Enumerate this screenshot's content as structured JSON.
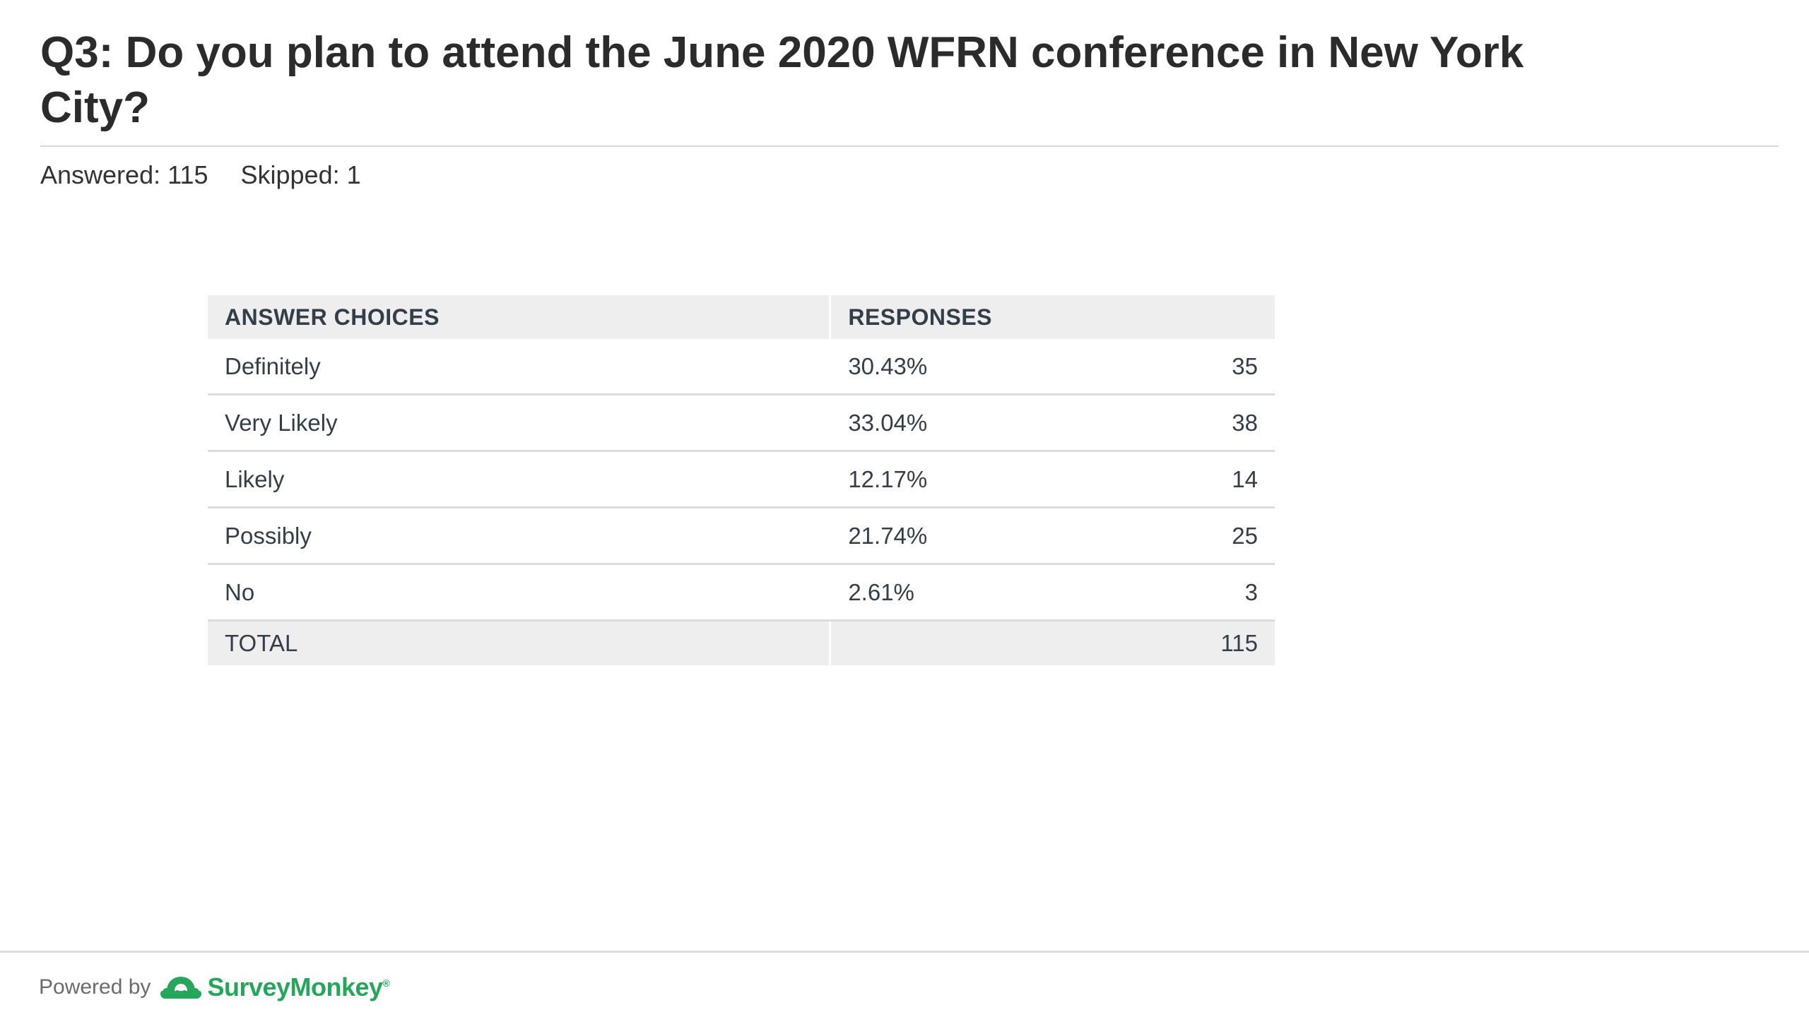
{
  "question": {
    "title": "Q3: Do you plan to attend the June 2020 WFRN conference in New York City?",
    "answered": "Answered: 115",
    "skipped": "Skipped: 1"
  },
  "table": {
    "headers": {
      "answer_choices": "ANSWER CHOICES",
      "responses": "RESPONSES"
    },
    "rows": [
      {
        "choice": "Definitely",
        "percent": "30.43%",
        "count": "35"
      },
      {
        "choice": "Very Likely",
        "percent": "33.04%",
        "count": "38"
      },
      {
        "choice": "Likely",
        "percent": "12.17%",
        "count": "14"
      },
      {
        "choice": "Possibly",
        "percent": "21.74%",
        "count": "25"
      },
      {
        "choice": "No",
        "percent": "2.61%",
        "count": "3"
      }
    ],
    "total": {
      "label": "TOTAL",
      "count": "115"
    }
  },
  "footer": {
    "powered_by": "Powered by",
    "brand": "SurveyMonkey",
    "brand_mark": "®",
    "brand_color": "#26a65b",
    "logo_icon": "surveymonkey-logo-icon"
  }
}
